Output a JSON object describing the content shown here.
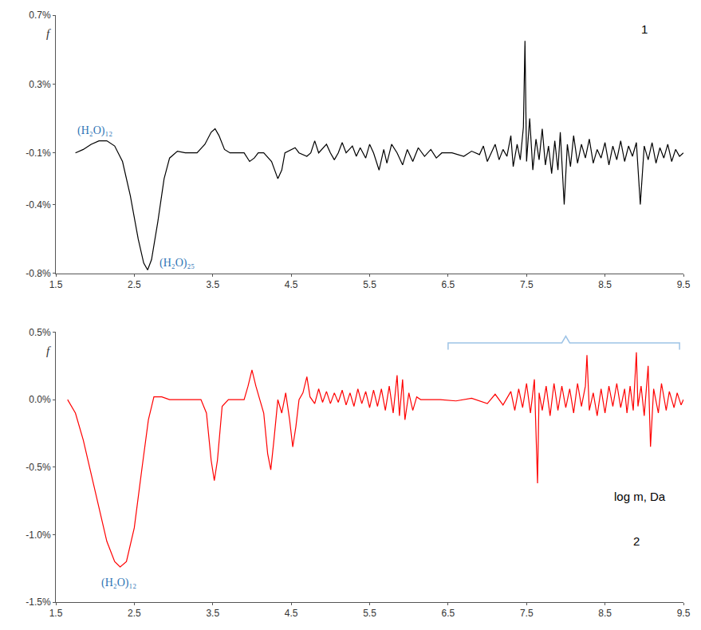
{
  "chart_data": [
    {
      "type": "line",
      "y_label": "f",
      "annotations": [
        "(H₂O)₁₂",
        "(H₂O)₂₅",
        "1"
      ],
      "x": [
        1.75,
        1.85,
        1.95,
        2.05,
        2.15,
        2.25,
        2.35,
        2.45,
        2.55,
        2.62,
        2.67,
        2.72,
        2.8,
        2.88,
        2.95,
        3.05,
        3.15,
        3.3,
        3.4,
        3.48,
        3.53,
        3.58,
        3.65,
        3.72,
        3.9,
        3.97,
        4.03,
        4.08,
        4.15,
        4.25,
        4.33,
        4.38,
        4.42,
        4.55,
        4.6,
        4.7,
        4.75,
        4.8,
        4.85,
        4.95,
        5.0,
        5.05,
        5.1,
        5.15,
        5.2,
        5.28,
        5.33,
        5.38,
        5.45,
        5.5,
        5.55,
        5.62,
        5.68,
        5.72,
        5.78,
        5.85,
        5.92,
        5.98,
        6.05,
        6.12,
        6.2,
        6.28,
        6.35,
        6.42,
        6.55,
        6.7,
        6.8,
        6.9,
        6.95,
        7.0,
        7.05,
        7.1,
        7.15,
        7.2,
        7.25,
        7.3,
        7.33,
        7.38,
        7.42,
        7.46,
        7.48,
        7.5,
        7.54,
        7.58,
        7.62,
        7.66,
        7.7,
        7.74,
        7.78,
        7.82,
        7.86,
        7.9,
        7.93,
        7.98,
        8.02,
        8.06,
        8.1,
        8.15,
        8.2,
        8.25,
        8.3,
        8.35,
        8.4,
        8.45,
        8.5,
        8.55,
        8.6,
        8.65,
        8.7,
        8.75,
        8.8,
        8.85,
        8.9,
        8.95,
        9.0,
        9.05,
        9.1,
        9.15,
        9.2,
        9.25,
        9.3,
        9.35,
        9.4,
        9.45,
        9.5
      ],
      "series": [
        {
          "color": "#000000",
          "values": [
            -0.1,
            -0.08,
            -0.05,
            -0.03,
            -0.03,
            -0.06,
            -0.15,
            -0.35,
            -0.6,
            -0.74,
            -0.78,
            -0.72,
            -0.5,
            -0.25,
            -0.13,
            -0.09,
            -0.1,
            -0.1,
            -0.05,
            0.02,
            0.04,
            0.0,
            -0.08,
            -0.1,
            -0.1,
            -0.15,
            -0.13,
            -0.1,
            -0.1,
            -0.15,
            -0.25,
            -0.2,
            -0.1,
            -0.07,
            -0.1,
            -0.12,
            -0.1,
            -0.03,
            -0.1,
            -0.05,
            -0.1,
            -0.14,
            -0.1,
            -0.04,
            -0.1,
            -0.06,
            -0.12,
            -0.07,
            -0.13,
            -0.05,
            -0.1,
            -0.2,
            -0.08,
            -0.16,
            -0.05,
            -0.1,
            -0.17,
            -0.08,
            -0.15,
            -0.07,
            -0.12,
            -0.08,
            -0.13,
            -0.1,
            -0.1,
            -0.12,
            -0.09,
            -0.11,
            -0.06,
            -0.15,
            -0.1,
            -0.05,
            -0.14,
            -0.08,
            -0.12,
            0.0,
            -0.18,
            -0.05,
            -0.14,
            0.05,
            0.55,
            -0.15,
            0.1,
            -0.2,
            -0.02,
            -0.14,
            0.04,
            -0.17,
            -0.06,
            -0.22,
            -0.03,
            -0.2,
            0.02,
            -0.4,
            -0.05,
            -0.18,
            0.0,
            -0.16,
            -0.05,
            -0.13,
            -0.02,
            -0.16,
            -0.08,
            -0.13,
            -0.04,
            -0.17,
            -0.06,
            -0.14,
            -0.03,
            -0.15,
            -0.06,
            -0.12,
            -0.04,
            -0.4,
            -0.06,
            -0.14,
            -0.04,
            -0.16,
            -0.07,
            -0.13,
            -0.05,
            -0.15,
            -0.08,
            -0.12,
            -0.1
          ]
        }
      ],
      "xlim": [
        1.5,
        9.5
      ],
      "xticks": [
        1.5,
        2.5,
        3.5,
        4.5,
        5.5,
        6.5,
        7.5,
        8.5,
        9.5
      ],
      "ylim": [
        -0.8,
        0.7
      ],
      "yticks": [
        {
          "value": 0.7,
          "label": "0.7%"
        },
        {
          "value": 0.3,
          "label": "0.3%"
        },
        {
          "value": -0.1,
          "label": "-0.1%"
        },
        {
          "value": -0.4,
          "label": "-0.4%"
        },
        {
          "value": -0.8,
          "label": "-0.8%"
        }
      ],
      "grid": false
    },
    {
      "type": "line",
      "y_label": "f",
      "x_label": "log m, Da",
      "annotations": [
        "(H₂O)₁₂",
        "2"
      ],
      "x": [
        1.65,
        1.75,
        1.85,
        1.95,
        2.05,
        2.15,
        2.25,
        2.32,
        2.4,
        2.5,
        2.6,
        2.68,
        2.75,
        2.85,
        2.95,
        3.35,
        3.42,
        3.48,
        3.52,
        3.56,
        3.62,
        3.7,
        3.9,
        3.95,
        4.0,
        4.05,
        4.1,
        4.15,
        4.2,
        4.24,
        4.28,
        4.33,
        4.38,
        4.43,
        4.48,
        4.52,
        4.56,
        4.6,
        4.65,
        4.7,
        4.74,
        4.8,
        4.85,
        4.9,
        4.95,
        5.0,
        5.05,
        5.1,
        5.15,
        5.2,
        5.25,
        5.3,
        5.35,
        5.4,
        5.45,
        5.5,
        5.55,
        5.6,
        5.65,
        5.7,
        5.75,
        5.8,
        5.85,
        5.88,
        5.92,
        5.95,
        6.0,
        6.05,
        6.1,
        6.15,
        6.4,
        6.6,
        6.8,
        7.0,
        7.1,
        7.2,
        7.3,
        7.35,
        7.4,
        7.45,
        7.5,
        7.55,
        7.6,
        7.64,
        7.66,
        7.7,
        7.75,
        7.8,
        7.85,
        7.9,
        7.95,
        8.0,
        8.05,
        8.1,
        8.15,
        8.2,
        8.25,
        8.27,
        8.3,
        8.35,
        8.4,
        8.45,
        8.5,
        8.55,
        8.6,
        8.65,
        8.7,
        8.75,
        8.78,
        8.82,
        8.86,
        8.9,
        8.92,
        8.96,
        9.0,
        9.05,
        9.08,
        9.12,
        9.18,
        9.22,
        9.28,
        9.32,
        9.38,
        9.42,
        9.47,
        9.5
      ],
      "series": [
        {
          "color": "#ff0000",
          "values": [
            0,
            -0.1,
            -0.3,
            -0.55,
            -0.8,
            -1.05,
            -1.2,
            -1.24,
            -1.2,
            -0.95,
            -0.5,
            -0.15,
            0.02,
            0.02,
            0,
            0,
            -0.1,
            -0.45,
            -0.6,
            -0.45,
            -0.05,
            0,
            0,
            0.1,
            0.22,
            0.1,
            0,
            -0.1,
            -0.4,
            -0.52,
            -0.3,
            0,
            -0.1,
            0.05,
            -0.15,
            -0.35,
            -0.2,
            0,
            0.05,
            0.17,
            0.02,
            -0.03,
            0.08,
            -0.02,
            0.06,
            -0.03,
            0.05,
            -0.02,
            0.07,
            -0.04,
            0.05,
            -0.05,
            0.08,
            -0.03,
            0.06,
            -0.06,
            0.07,
            -0.05,
            0.08,
            -0.08,
            0.1,
            -0.1,
            0.18,
            -0.12,
            0.15,
            -0.15,
            0.05,
            -0.08,
            0.02,
            0,
            0,
            -0.01,
            0.01,
            -0.03,
            0.04,
            -0.04,
            0.06,
            -0.08,
            0.08,
            -0.06,
            0.12,
            -0.1,
            0.15,
            -0.62,
            0.05,
            -0.08,
            0.1,
            -0.12,
            0.12,
            -0.08,
            0.1,
            -0.06,
            0.08,
            -0.1,
            0.12,
            -0.05,
            0.1,
            0.33,
            -0.08,
            0.05,
            -0.12,
            0.08,
            -0.1,
            0.1,
            -0.05,
            0.12,
            -0.06,
            0.08,
            -0.1,
            0.1,
            -0.08,
            0.35,
            -0.05,
            0.1,
            -0.12,
            0.25,
            -0.35,
            0.08,
            -0.1,
            0.12,
            -0.08,
            0.06,
            -0.06,
            0.05,
            -0.04,
            0
          ]
        }
      ],
      "xlim": [
        1.5,
        9.5
      ],
      "xticks": [
        1.5,
        2.5,
        3.5,
        4.5,
        5.5,
        6.5,
        7.5,
        8.5,
        9.5
      ],
      "ylim": [
        -1.5,
        0.5
      ],
      "yticks": [
        {
          "value": 0.5,
          "label": "0.5%"
        },
        {
          "value": 0,
          "label": "0.0%"
        },
        {
          "value": -0.5,
          "label": "-0.5%"
        },
        {
          "value": -1.0,
          "label": "-1.0%"
        },
        {
          "value": -1.5,
          "label": "-1.5%"
        }
      ],
      "grid": false
    }
  ]
}
